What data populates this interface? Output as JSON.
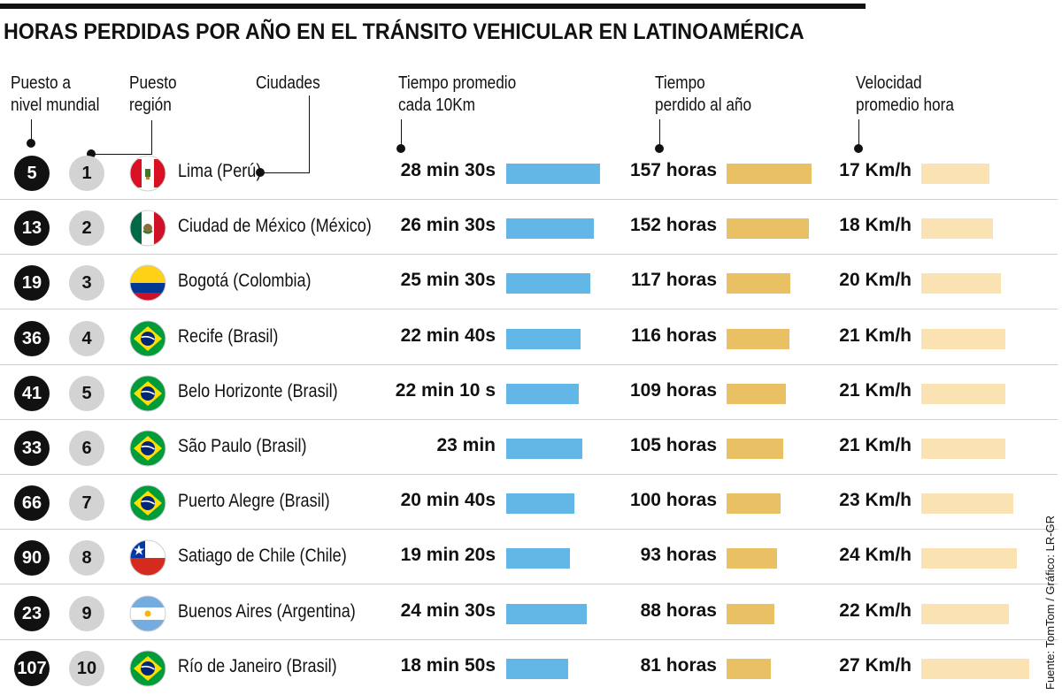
{
  "title": "HORAS PERDIDAS POR AÑO EN EL TRÁNSITO VEHICULAR EN LATINOAMÉRICA",
  "headers": {
    "world_rank": [
      "Puesto a",
      "nivel mundial"
    ],
    "region_rank": [
      "Puesto",
      "región"
    ],
    "cities": "Ciudades",
    "time_10km": [
      "Tiempo promedio",
      "cada 10Km"
    ],
    "time_lost": [
      "Tiempo",
      "perdido al año"
    ],
    "speed": [
      "Velocidad",
      "promedio hora"
    ]
  },
  "source": "Fuente: TomTom / Gráfico: LR-GR",
  "colors": {
    "time_bar": "#62b7e6",
    "lost_bar": "#e9c063",
    "speed_bar": "#fae2b3"
  },
  "chart_data": {
    "type": "table",
    "title": "HORAS PERDIDAS POR AÑO EN EL TRÁNSITO VEHICULAR EN LATINOAMÉRICA",
    "columns": [
      "Puesto a nivel mundial",
      "Puesto región",
      "Ciudades",
      "Tiempo promedio cada 10Km",
      "Tiempo perdido al año",
      "Velocidad promedio hora"
    ],
    "rows": [
      {
        "world": "5",
        "region": "1",
        "city": "Lima (Perú)",
        "flag": "peru",
        "time_label": "28 min 30s",
        "time_min": 28.5,
        "lost_label": "157 horas",
        "lost": 157,
        "speed_label": "17 Km/h",
        "speed": 17
      },
      {
        "world": "13",
        "region": "2",
        "city": "Ciudad de México (México)",
        "flag": "mexico",
        "time_label": "26 min 30s",
        "time_min": 26.5,
        "lost_label": "152 horas",
        "lost": 152,
        "speed_label": "18 Km/h",
        "speed": 18
      },
      {
        "world": "19",
        "region": "3",
        "city": "Bogotá (Colombia)",
        "flag": "colombia",
        "time_label": "25 min 30s",
        "time_min": 25.5,
        "lost_label": "117 horas",
        "lost": 117,
        "speed_label": "20 Km/h",
        "speed": 20
      },
      {
        "world": "36",
        "region": "4",
        "city": "Recife (Brasil)",
        "flag": "brasil",
        "time_label": "22 min 40s",
        "time_min": 22.67,
        "lost_label": "116 horas",
        "lost": 116,
        "speed_label": "21 Km/h",
        "speed": 21
      },
      {
        "world": "41",
        "region": "5",
        "city": "Belo Horizonte (Brasil)",
        "flag": "brasil",
        "time_label": "22 min 10 s",
        "time_min": 22.17,
        "lost_label": "109 horas",
        "lost": 109,
        "speed_label": "21 Km/h",
        "speed": 21
      },
      {
        "world": "33",
        "region": "6",
        "city": "São Paulo (Brasil)",
        "flag": "brasil",
        "time_label": "23 min",
        "time_min": 23,
        "lost_label": "105 horas",
        "lost": 105,
        "speed_label": "21 Km/h",
        "speed": 21
      },
      {
        "world": "66",
        "region": "7",
        "city": "Puerto Alegre (Brasil)",
        "flag": "brasil",
        "time_label": "20 min 40s",
        "time_min": 20.67,
        "lost_label": "100 horas",
        "lost": 100,
        "speed_label": "23 Km/h",
        "speed": 23
      },
      {
        "world": "90",
        "region": "8",
        "city": "Satiago de Chile (Chile)",
        "flag": "chile",
        "time_label": "19 min 20s",
        "time_min": 19.33,
        "lost_label": "93 horas",
        "lost": 93,
        "speed_label": "24 Km/h",
        "speed": 24
      },
      {
        "world": "23",
        "region": "9",
        "city": "Buenos Aires (Argentina)",
        "flag": "argentina",
        "time_label": "24 min 30s",
        "time_min": 24.5,
        "lost_label": "88 horas",
        "lost": 88,
        "speed_label": "22 Km/h",
        "speed": 22
      },
      {
        "world": "107",
        "region": "10",
        "city": "Río de Janeiro (Brasil)",
        "flag": "brasil",
        "time_label": "18 min 50s",
        "time_min": 18.83,
        "lost_label": "81 horas",
        "lost": 81,
        "speed_label": "27 Km/h",
        "speed": 27
      }
    ]
  }
}
